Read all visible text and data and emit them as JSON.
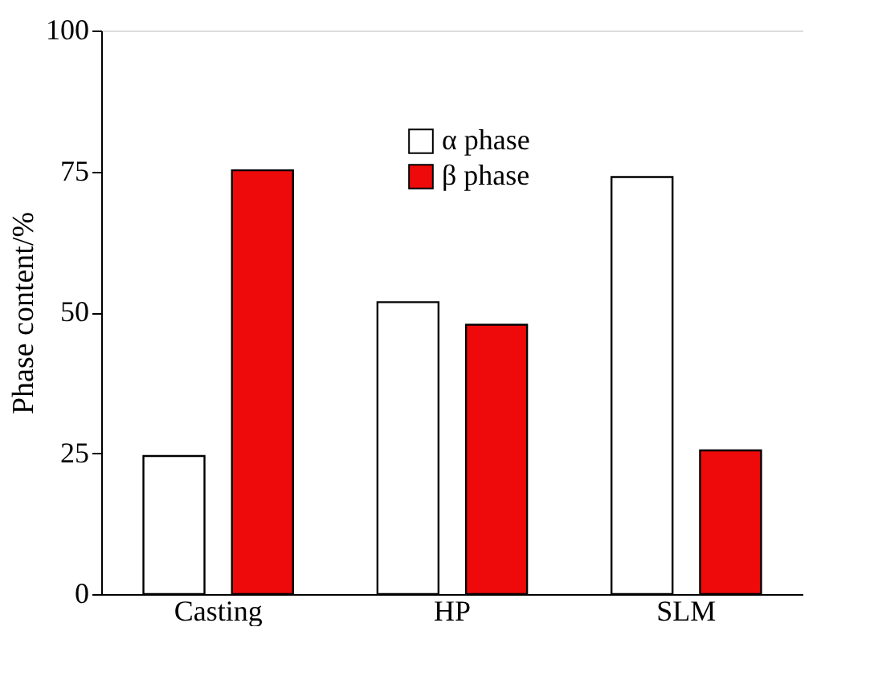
{
  "chart_data": {
    "type": "bar",
    "ylabel": "Phase content/%",
    "categories": [
      "Casting",
      "HP",
      "SLM"
    ],
    "series": [
      {
        "name": "α phase",
        "color": "#ffffff",
        "values": [
          24.5,
          51.8,
          74
        ]
      },
      {
        "name": "β phase",
        "color": "#ee0a0a",
        "values": [
          75.2,
          47.8,
          25.5
        ]
      }
    ],
    "ylim": [
      0,
      100
    ],
    "yticks": [
      0,
      25,
      50,
      75,
      100
    ],
    "grid": false,
    "legend": "top"
  }
}
